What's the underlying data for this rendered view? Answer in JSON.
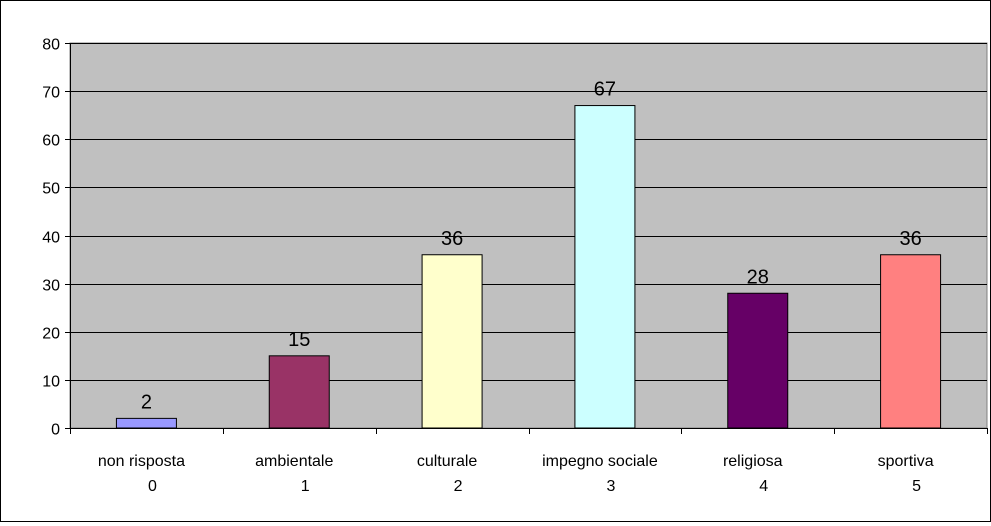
{
  "chart_data": {
    "type": "bar",
    "categories": [
      {
        "label": "non risposta",
        "code": "0"
      },
      {
        "label": "ambientale",
        "code": "1"
      },
      {
        "label": "culturale",
        "code": "2"
      },
      {
        "label": "impegno sociale",
        "code": "3"
      },
      {
        "label": "religiosa",
        "code": "4"
      },
      {
        "label": "sportiva",
        "code": "5"
      }
    ],
    "values": [
      2,
      15,
      36,
      67,
      28,
      36
    ],
    "value_labels": [
      "2",
      "15",
      "36",
      "67",
      "28",
      "36"
    ],
    "bar_colors": [
      "#9999ff",
      "#993366",
      "#ffffcc",
      "#ccffff",
      "#660066",
      "#ff8080"
    ],
    "plot_background": "#c0c0c0",
    "ylim": [
      0,
      80
    ],
    "ytick_values": [
      0,
      10,
      20,
      30,
      40,
      50,
      60,
      70,
      80
    ],
    "yticks": [
      "0",
      "10",
      "20",
      "30",
      "40",
      "50",
      "60",
      "70",
      "80"
    ],
    "grid": true,
    "title": "",
    "xlabel": "",
    "ylabel": ""
  }
}
